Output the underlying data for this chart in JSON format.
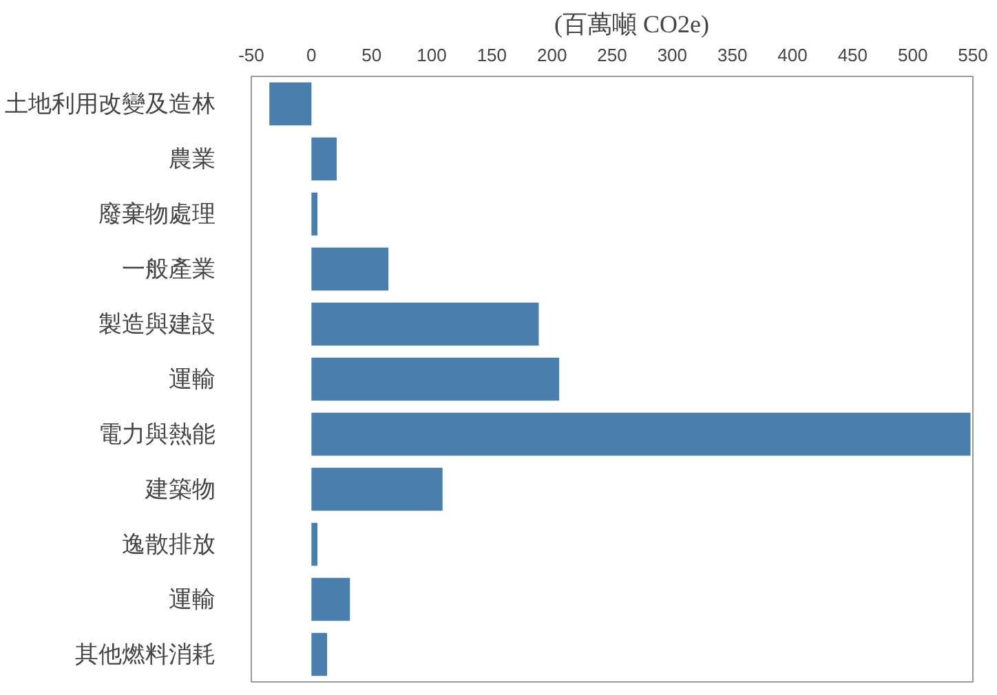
{
  "chart_data": {
    "type": "bar",
    "orientation": "horizontal",
    "title": "(百萬噸 CO2e)",
    "categories": [
      "土地利用改變及造林",
      "農業",
      "廢棄物處理",
      "一般產業",
      "製造與建設",
      "運輸",
      "電力與熱能",
      "建築物",
      "逸散排放",
      "運輸",
      "其他燃料消耗"
    ],
    "values": [
      -35,
      21,
      5,
      64,
      189,
      206,
      548,
      109,
      5,
      32,
      13
    ],
    "color": "#4a7ead",
    "xlim": [
      -50,
      550
    ],
    "xticks": [
      -50,
      0,
      50,
      100,
      150,
      200,
      250,
      300,
      350,
      400,
      450,
      500,
      550
    ],
    "grid": false
  }
}
